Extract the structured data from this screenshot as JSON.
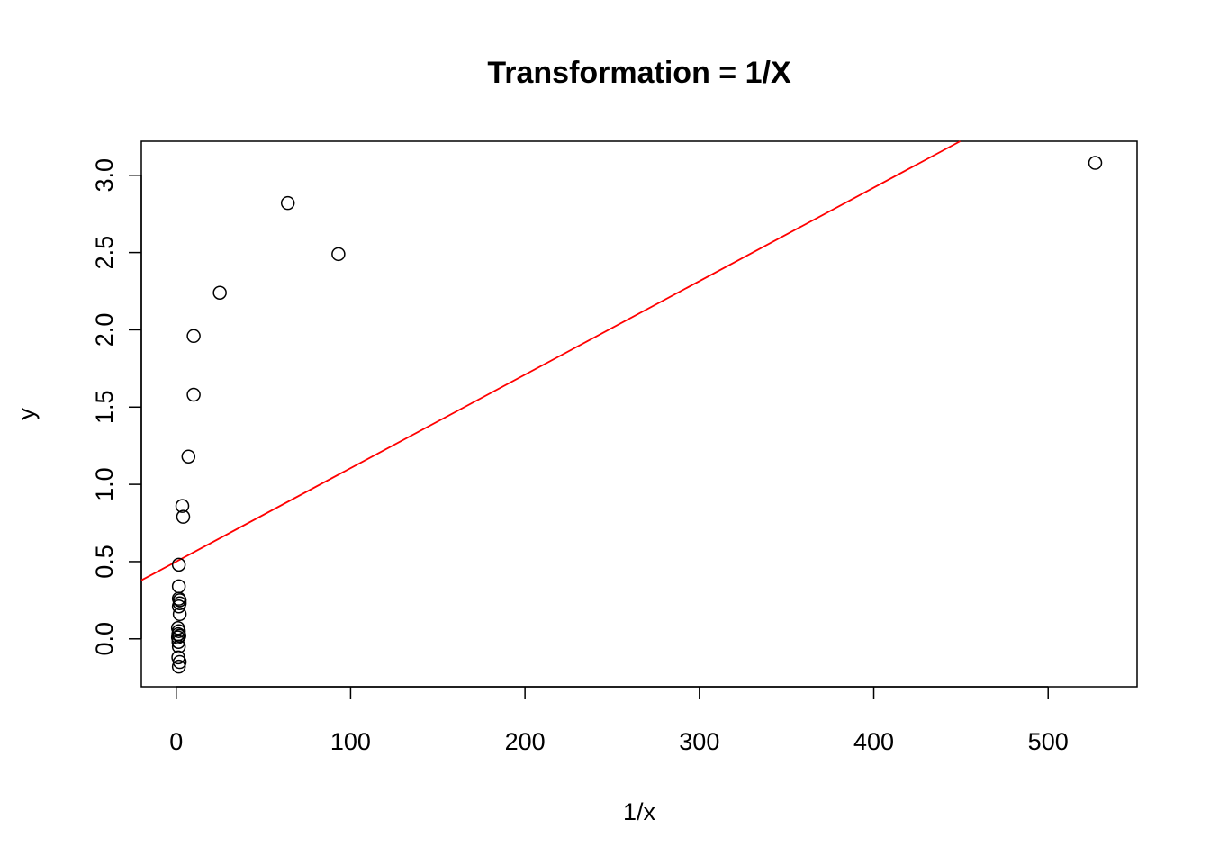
{
  "chart_data": {
    "type": "scatter",
    "title": "Transformation = 1/X",
    "xlabel": "1/x",
    "ylabel": "y",
    "xlim": [
      -20,
      551
    ],
    "ylim": [
      -0.31,
      3.22
    ],
    "xticks": [
      0,
      100,
      200,
      300,
      400,
      500
    ],
    "xtick_labels": [
      "0",
      "100",
      "200",
      "300",
      "400",
      "500"
    ],
    "yticks": [
      0.0,
      0.5,
      1.0,
      1.5,
      2.0,
      2.5,
      3.0
    ],
    "ytick_labels": [
      "0.0",
      "0.5",
      "1.0",
      "1.5",
      "2.0",
      "2.5",
      "3.0"
    ],
    "grid": false,
    "point_style": "open-circle",
    "points": [
      {
        "x": 527,
        "y": 3.08
      },
      {
        "x": 64,
        "y": 2.82
      },
      {
        "x": 93,
        "y": 2.49
      },
      {
        "x": 25,
        "y": 2.24
      },
      {
        "x": 10,
        "y": 1.96
      },
      {
        "x": 10,
        "y": 1.58
      },
      {
        "x": 7,
        "y": 1.18
      },
      {
        "x": 3.5,
        "y": 0.86
      },
      {
        "x": 4,
        "y": 0.79
      },
      {
        "x": 1.5,
        "y": 0.48
      },
      {
        "x": 1.5,
        "y": 0.34
      },
      {
        "x": 1.5,
        "y": 0.26
      },
      {
        "x": 2,
        "y": 0.25
      },
      {
        "x": 1.5,
        "y": 0.21
      },
      {
        "x": 2,
        "y": 0.23
      },
      {
        "x": 2,
        "y": 0.16
      },
      {
        "x": 1,
        "y": 0.07
      },
      {
        "x": 1.5,
        "y": 0.05
      },
      {
        "x": 1.2,
        "y": 0.03
      },
      {
        "x": 1.8,
        "y": 0.02
      },
      {
        "x": 1,
        "y": 0.01
      },
      {
        "x": 1.3,
        "y": -0.02
      },
      {
        "x": 1.5,
        "y": -0.05
      },
      {
        "x": 1.2,
        "y": -0.12
      },
      {
        "x": 2,
        "y": -0.15
      },
      {
        "x": 1.5,
        "y": -0.18
      }
    ],
    "fit_line": {
      "color": "#ff0000",
      "intercept": 0.5,
      "slope": 0.00605
    }
  }
}
